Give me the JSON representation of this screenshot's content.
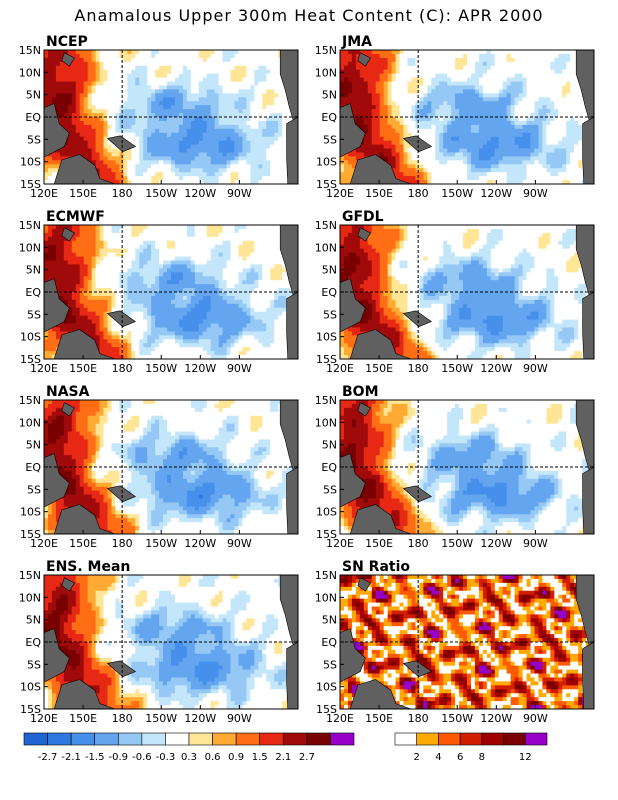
{
  "title": "Anamalous Upper 300m Heat Content (C): APR 2000",
  "chart_data": {
    "type": "heatmap",
    "lon_ticks": [
      "120E",
      "150E",
      "180",
      "150W",
      "120W",
      "90W"
    ],
    "lat_ticks": [
      "15N",
      "10N",
      "5N",
      "EQ",
      "5S",
      "10S",
      "15S"
    ],
    "panels": [
      {
        "name": "NCEP",
        "pattern": "anomaly"
      },
      {
        "name": "JMA",
        "pattern": "anomaly"
      },
      {
        "name": "ECMWF",
        "pattern": "anomaly"
      },
      {
        "name": "GFDL",
        "pattern": "anomaly"
      },
      {
        "name": "NASA",
        "pattern": "anomaly"
      },
      {
        "name": "BOM",
        "pattern": "anomaly"
      },
      {
        "name": "ENS. Mean",
        "pattern": "anomaly"
      },
      {
        "name": "SN Ratio",
        "pattern": "ratio"
      }
    ],
    "anomaly_colorbar": {
      "labels": [
        "-2.7",
        "-2.1",
        "-1.5",
        "-0.9",
        "-0.6",
        "-0.3",
        "0.3",
        "0.6",
        "0.9",
        "1.5",
        "2.1",
        "2.7"
      ],
      "colors": [
        "#1e64d2",
        "#2d78e1",
        "#4690eb",
        "#64a5f0",
        "#96c8f5",
        "#c3e6fa",
        "#ffffff",
        "#ffe696",
        "#ffaa32",
        "#ff6e14",
        "#e62814",
        "#a00a0a",
        "#780000",
        "#9600c8"
      ]
    },
    "ratio_colorbar": {
      "labels": [
        "2",
        "4",
        "6",
        "8",
        "12"
      ],
      "colors": [
        "#ffffff",
        "#ffaa00",
        "#ff5a00",
        "#d21e00",
        "#a00000",
        "#780000",
        "#9600c8"
      ]
    }
  }
}
